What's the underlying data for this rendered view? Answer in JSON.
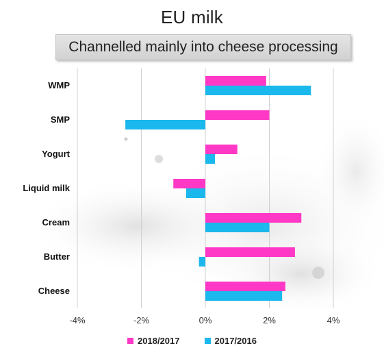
{
  "title": "EU milk",
  "subtitle": "Channelled mainly into cheese processing",
  "colors": {
    "series1": "#ff38c6",
    "series2": "#1ab8ec",
    "grid": "#cfcfcf",
    "subtitle_bg": "#dadada"
  },
  "chart_data": {
    "type": "bar",
    "orientation": "horizontal",
    "categories": [
      "WMP",
      "SMP",
      "Yogurt",
      "Liquid milk",
      "Cream",
      "Butter",
      "Cheese"
    ],
    "series": [
      {
        "name": "2018/2017",
        "values": [
          1.9,
          2.0,
          1.0,
          -1.0,
          3.0,
          2.8,
          2.5
        ]
      },
      {
        "name": "2017/2016",
        "values": [
          3.3,
          -2.5,
          0.3,
          -0.6,
          2.0,
          -0.2,
          2.4
        ]
      }
    ],
    "xlim": [
      -4,
      4
    ],
    "xticks": [
      "-4%",
      "-2%",
      "0%",
      "2%",
      "4%"
    ],
    "xtick_values": [
      -4,
      -2,
      0,
      2,
      4
    ],
    "xlabel": "",
    "ylabel": "",
    "grid": true,
    "legend_position": "bottom"
  }
}
